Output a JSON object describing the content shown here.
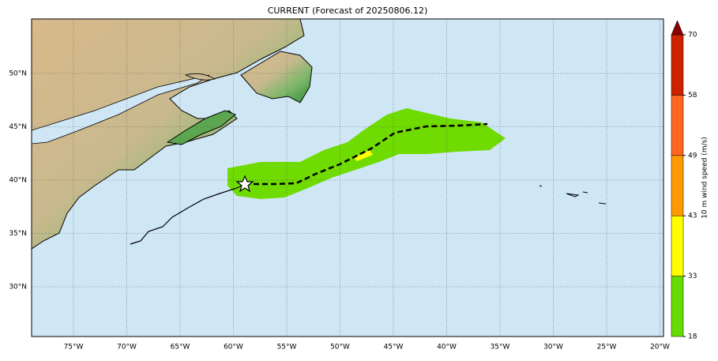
{
  "title": "CURRENT (Forecast of 20250806.12)",
  "lon_labels": [
    "75°W",
    "70°W",
    "65°W",
    "60°W",
    "55°W",
    "50°W",
    "45°W",
    "40°W",
    "35°W",
    "30°W",
    "25°W",
    "20°W"
  ],
  "lat_labels": [
    "50°N",
    "45°N",
    "40°N",
    "35°N",
    "30°N"
  ],
  "colorbar": {
    "label": "10 m wind speed (m/s)",
    "ticks": [
      18,
      33,
      43,
      49,
      58,
      70
    ],
    "colors": [
      "#66dd00",
      "#ffff00",
      "#ff9900",
      "#ff6622",
      "#cc2200"
    ],
    "extend_color": "#8b0000"
  }
}
